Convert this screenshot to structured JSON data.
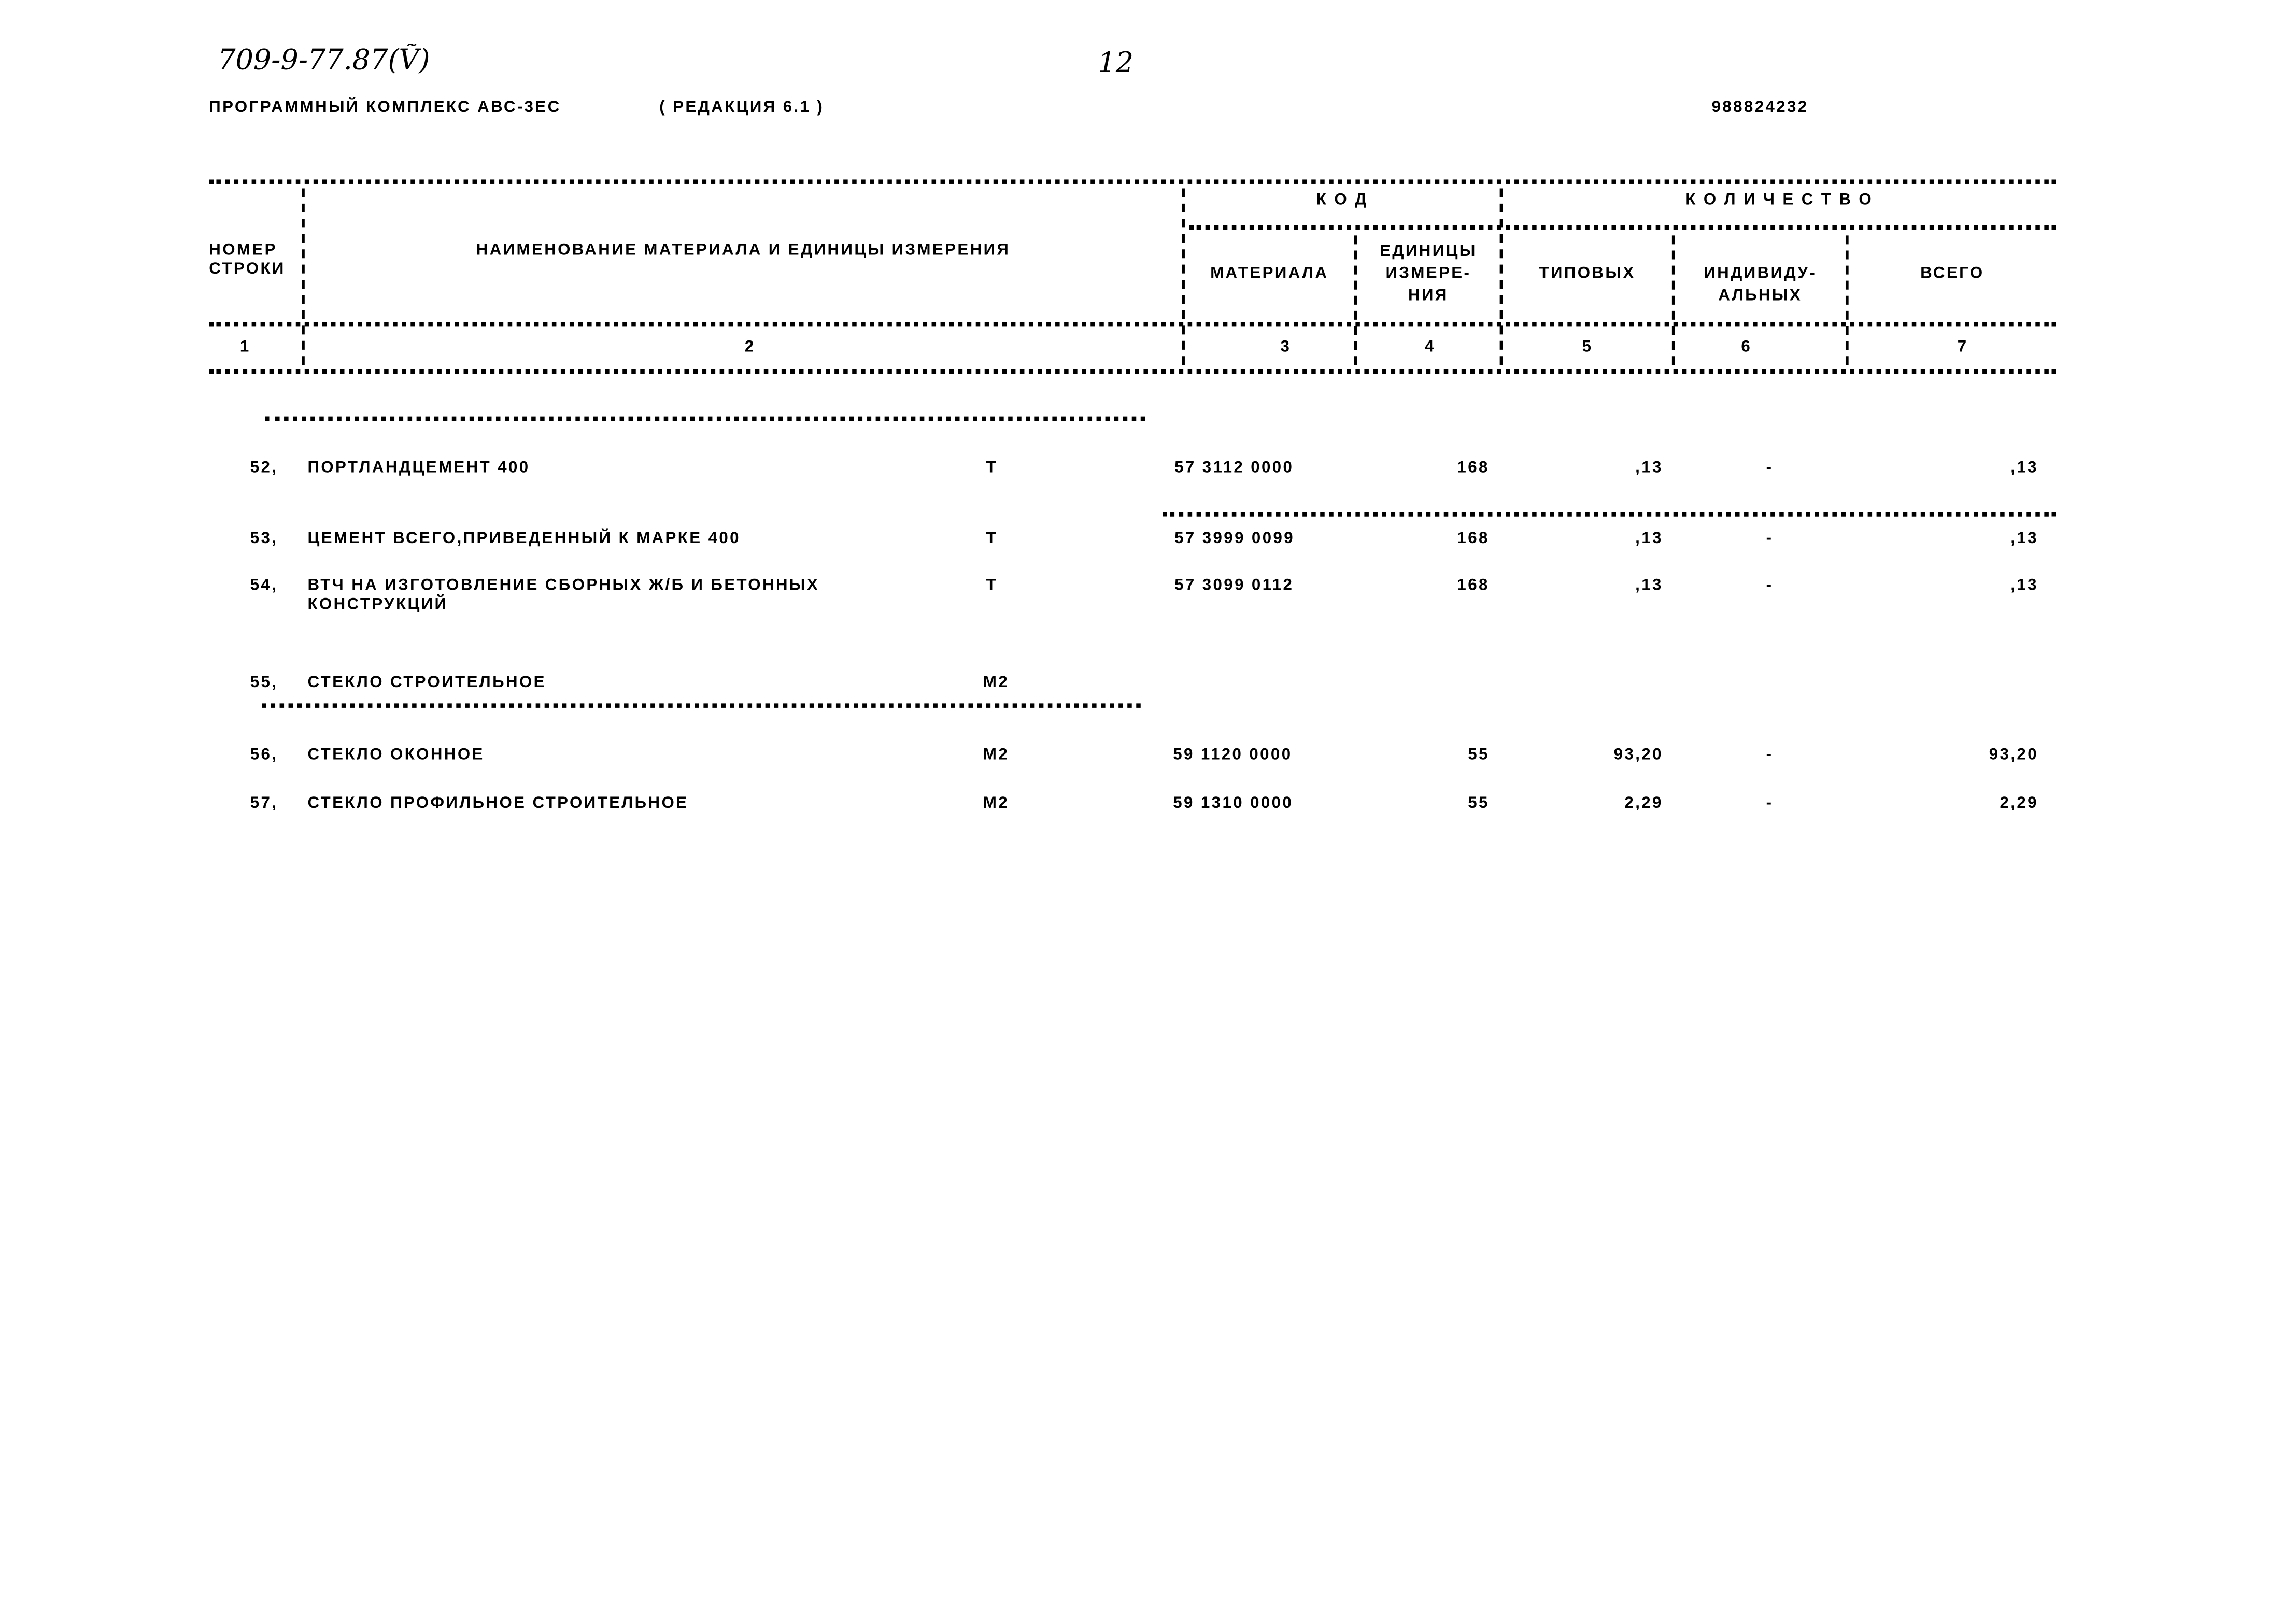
{
  "handwritten": {
    "doc_number": "709-9-77.87(Ṽ)",
    "page_number": "12"
  },
  "header": {
    "program": "ПРОГРАММНЫЙ КОМПЛЕКС АВС-3ЕС",
    "edition": "( РЕДАКЦИЯ  6.1 )",
    "code": "988824232"
  },
  "table_header": {
    "row_number": [
      "НОМЕР",
      "СТРОКИ"
    ],
    "name": "НАИМЕНОВАНИЕ МАТЕРИАЛА И ЕДИНИЦЫ ИЗМЕРЕНИЯ",
    "code_group": "К О Д",
    "quantity_group": "К О Л И Ч Е С Т В О",
    "material": "МАТЕРИАЛА",
    "unit": [
      "ЕДИНИЦЫ",
      "ИЗМЕРЕ-",
      "НИЯ"
    ],
    "typical": "ТИПОВЫХ",
    "individual": [
      "ИНДИВИДУ-",
      "АЛЬНЫХ"
    ],
    "total": "ВСЕГО",
    "column_numbers": [
      "1",
      "2",
      "3",
      "4",
      "5",
      "6",
      "7"
    ]
  },
  "rows": [
    {
      "num": "52,",
      "name": "ПОРТЛАНДЦЕМЕНТ 400",
      "unit": "Т",
      "code": "57 3112 0000",
      "unit_code": "168",
      "typical": ",13",
      "individual": "-",
      "total": ",13"
    },
    {
      "num": "53,",
      "name": "ЦЕМЕНТ ВСЕГО,ПРИВЕДЕННЫЙ К МАРКЕ 400",
      "unit": "Т",
      "code": "57 3999 0099",
      "unit_code": "168",
      "typical": ",13",
      "individual": "-",
      "total": ",13"
    },
    {
      "num": "54,",
      "name": "ВТЧ НА ИЗГОТОВЛЕНИЕ СБОРНЫХ Ж/Б И БЕТОННЫХ",
      "name2": "КОНСТРУКЦИЙ",
      "unit": "Т",
      "code": "57 3099 0112",
      "unit_code": "168",
      "typical": ",13",
      "individual": "-",
      "total": ",13"
    },
    {
      "num": "55,",
      "name": "СТЕКЛО СТРОИТЕЛЬНОЕ",
      "unit": "М2"
    },
    {
      "num": "56,",
      "name": "СТЕКЛО ОКОННОЕ",
      "unit": "М2",
      "code": "59 1120 0000",
      "unit_code": "55",
      "typical": "93,20",
      "individual": "-",
      "total": "93,20"
    },
    {
      "num": "57,",
      "name": "СТЕКЛО ПРОФИЛЬНОЕ СТРОИТЕЛЬНОЕ",
      "unit": "М2",
      "code": "59 1310 0000",
      "unit_code": "55",
      "typical": "2,29",
      "individual": "-",
      "total": "2,29"
    }
  ]
}
